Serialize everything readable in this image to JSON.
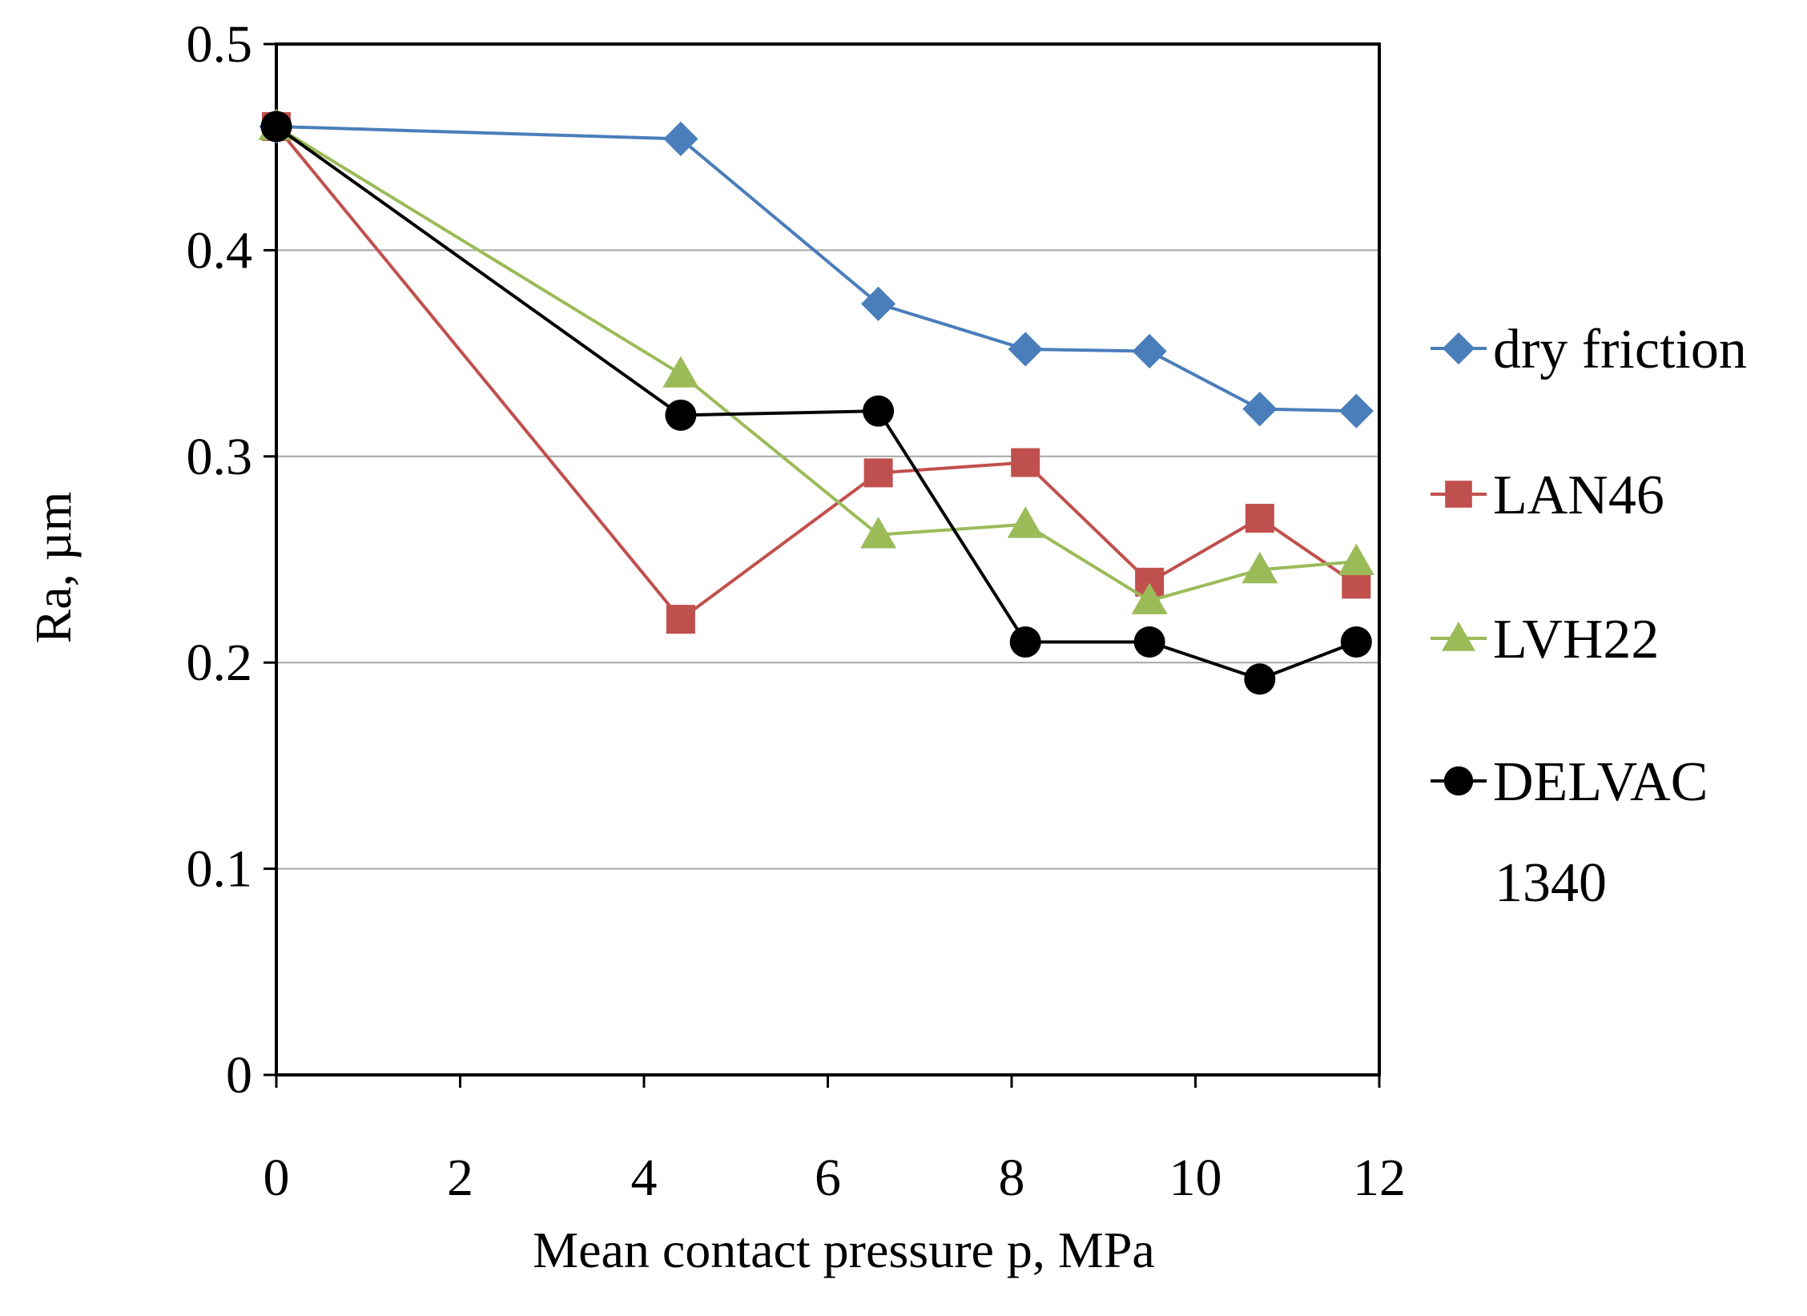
{
  "chart_data": {
    "type": "line",
    "title": "",
    "xlabel": "Mean contact pressure p, MPa",
    "ylabel": "Ra, µm",
    "xlim": [
      0,
      12
    ],
    "ylim": [
      0,
      0.5
    ],
    "x_ticks": [
      "0",
      "2",
      "4",
      "6",
      "8",
      "10",
      "12"
    ],
    "y_ticks": [
      "0",
      "0.1",
      "0.2",
      "0.3",
      "0.4",
      "0.5"
    ],
    "grid": "horizontal major gridlines",
    "legend_position": "right",
    "series": [
      {
        "name": "dry friction",
        "color": "#4a7ebb",
        "marker": "diamond",
        "x": [
          0,
          4.4,
          6.55,
          8.15,
          9.5,
          10.7,
          11.75
        ],
        "y": [
          0.46,
          0.454,
          0.374,
          0.352,
          0.351,
          0.323,
          0.322
        ]
      },
      {
        "name": "LAN46",
        "color": "#c0504d",
        "marker": "square",
        "x": [
          0,
          4.4,
          6.55,
          8.15,
          9.5,
          10.7,
          11.75
        ],
        "y": [
          0.46,
          0.221,
          0.292,
          0.297,
          0.239,
          0.27,
          0.238
        ]
      },
      {
        "name": "LVH22",
        "color": "#9bbb59",
        "marker": "triangle",
        "x": [
          0,
          4.4,
          6.55,
          8.15,
          9.5,
          10.7,
          11.75
        ],
        "y": [
          0.46,
          0.34,
          0.262,
          0.267,
          0.23,
          0.245,
          0.249
        ]
      },
      {
        "name": "DELVAC 1340",
        "color": "#000000",
        "marker": "circle",
        "x": [
          0,
          4.4,
          6.55,
          8.15,
          9.5,
          10.7,
          11.75
        ],
        "y": [
          0.46,
          0.32,
          0.322,
          0.21,
          0.21,
          0.192,
          0.21
        ]
      }
    ]
  }
}
